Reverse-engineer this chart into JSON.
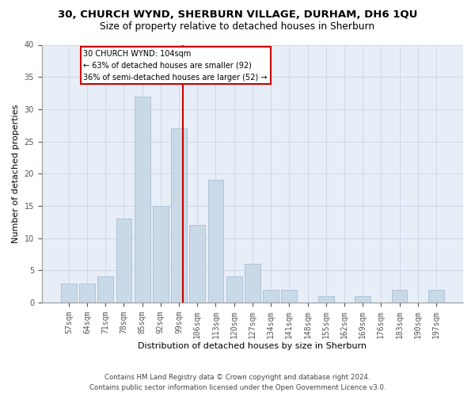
{
  "title1": "30, CHURCH WYND, SHERBURN VILLAGE, DURHAM, DH6 1QU",
  "title2": "Size of property relative to detached houses in Sherburn",
  "xlabel": "Distribution of detached houses by size in Sherburn",
  "ylabel": "Number of detached properties",
  "categories": [
    "57sqm",
    "64sqm",
    "71sqm",
    "78sqm",
    "85sqm",
    "92sqm",
    "99sqm",
    "106sqm",
    "113sqm",
    "120sqm",
    "127sqm",
    "134sqm",
    "141sqm",
    "148sqm",
    "155sqm",
    "162sqm",
    "169sqm",
    "176sqm",
    "183sqm",
    "190sqm",
    "197sqm"
  ],
  "values": [
    3,
    3,
    4,
    13,
    32,
    15,
    27,
    12,
    19,
    4,
    6,
    2,
    2,
    0,
    1,
    0,
    1,
    0,
    2,
    0,
    2
  ],
  "bar_color": "#c9d9e8",
  "bar_edge_color": "#a8bfd4",
  "subject_label": "30 CHURCH WYND: 104sqm",
  "annotation_line1": "← 63% of detached houses are smaller (92)",
  "annotation_line2": "36% of semi-detached houses are larger (52) →",
  "annotation_box_color": "#ffffff",
  "annotation_box_edge_color": "#cc0000",
  "subject_line_color": "#cc0000",
  "ylim": [
    0,
    40
  ],
  "yticks": [
    0,
    5,
    10,
    15,
    20,
    25,
    30,
    35,
    40
  ],
  "grid_color": "#cdd8e8",
  "background_color": "#e8eef8",
  "footer1": "Contains HM Land Registry data © Crown copyright and database right 2024.",
  "footer2": "Contains public sector information licensed under the Open Government Licence v3.0.",
  "title1_fontsize": 9.5,
  "title2_fontsize": 8.8,
  "xlabel_fontsize": 8.0,
  "ylabel_fontsize": 8.0,
  "tick_fontsize": 7.0,
  "footer_fontsize": 6.2,
  "annot_fontsize": 7.0
}
